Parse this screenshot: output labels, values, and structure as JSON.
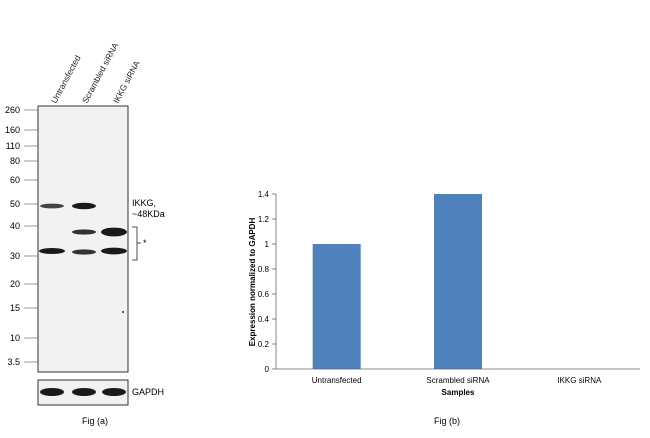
{
  "figure_a": {
    "lane_labels": [
      "Untransfected",
      "Scrambled siRNA",
      "IKKG siRNA"
    ],
    "mw_markers": [
      "260",
      "160",
      "110",
      "80",
      "60",
      "50",
      "40",
      "30",
      "20",
      "15",
      "10",
      "3.5"
    ],
    "band_label_line1": "IKKG,",
    "band_label_line2": "~48KDa",
    "asterisk": "*",
    "loading_control_label": "GAPDH",
    "caption": "Fig (a)"
  },
  "chart_data": {
    "type": "bar",
    "categories": [
      "Untransfected",
      "Scrambled siRNA",
      "IKKG siRNA"
    ],
    "values": [
      1.0,
      1.4,
      0.0
    ],
    "title": "",
    "xlabel": "Samples",
    "ylabel": "Expression  normalized to GAPDH",
    "ylim": [
      0,
      1.4
    ],
    "yticks": [
      "0",
      "0.2",
      "0.4",
      "0.6",
      "0.8",
      "1",
      "1.2",
      "1.4"
    ],
    "bar_color": "#4f81bd",
    "grid": false,
    "caption": "Fig (b)"
  }
}
